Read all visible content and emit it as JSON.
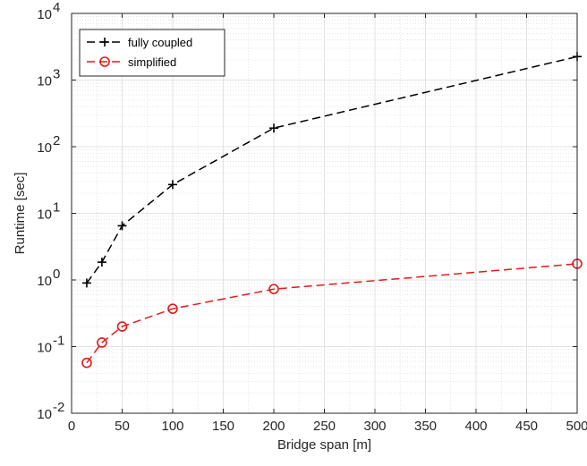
{
  "chart_data": {
    "type": "line",
    "xlabel": "Bridge span [m]",
    "ylabel": "Runtime [sec]",
    "xlim": [
      0,
      500
    ],
    "ylim": [
      0.01,
      10000
    ],
    "yscale": "log",
    "grid": true,
    "minor_grid": true,
    "legend_position": "top-left",
    "x_ticks": [
      "0",
      "50",
      "100",
      "150",
      "200",
      "250",
      "300",
      "350",
      "400",
      "450",
      "500"
    ],
    "y_ticks": [
      {
        "base": "10",
        "exp": "-2"
      },
      {
        "base": "10",
        "exp": "-1"
      },
      {
        "base": "10",
        "exp": "0"
      },
      {
        "base": "10",
        "exp": "1"
      },
      {
        "base": "10",
        "exp": "2"
      },
      {
        "base": "10",
        "exp": "3"
      },
      {
        "base": "10",
        "exp": "4"
      }
    ],
    "series": [
      {
        "name": "fully coupled",
        "color": "#000000",
        "marker": "plus",
        "line": "dashed",
        "x": [
          15,
          30,
          50,
          100,
          200,
          500
        ],
        "y": [
          0.9,
          1.85,
          6.5,
          27,
          190,
          2250
        ]
      },
      {
        "name": "simplified",
        "color": "#e31a1c",
        "marker": "circle",
        "line": "dashed",
        "x": [
          15,
          30,
          50,
          100,
          200,
          500
        ],
        "y": [
          0.057,
          0.115,
          0.2,
          0.37,
          0.73,
          1.75
        ]
      }
    ]
  }
}
